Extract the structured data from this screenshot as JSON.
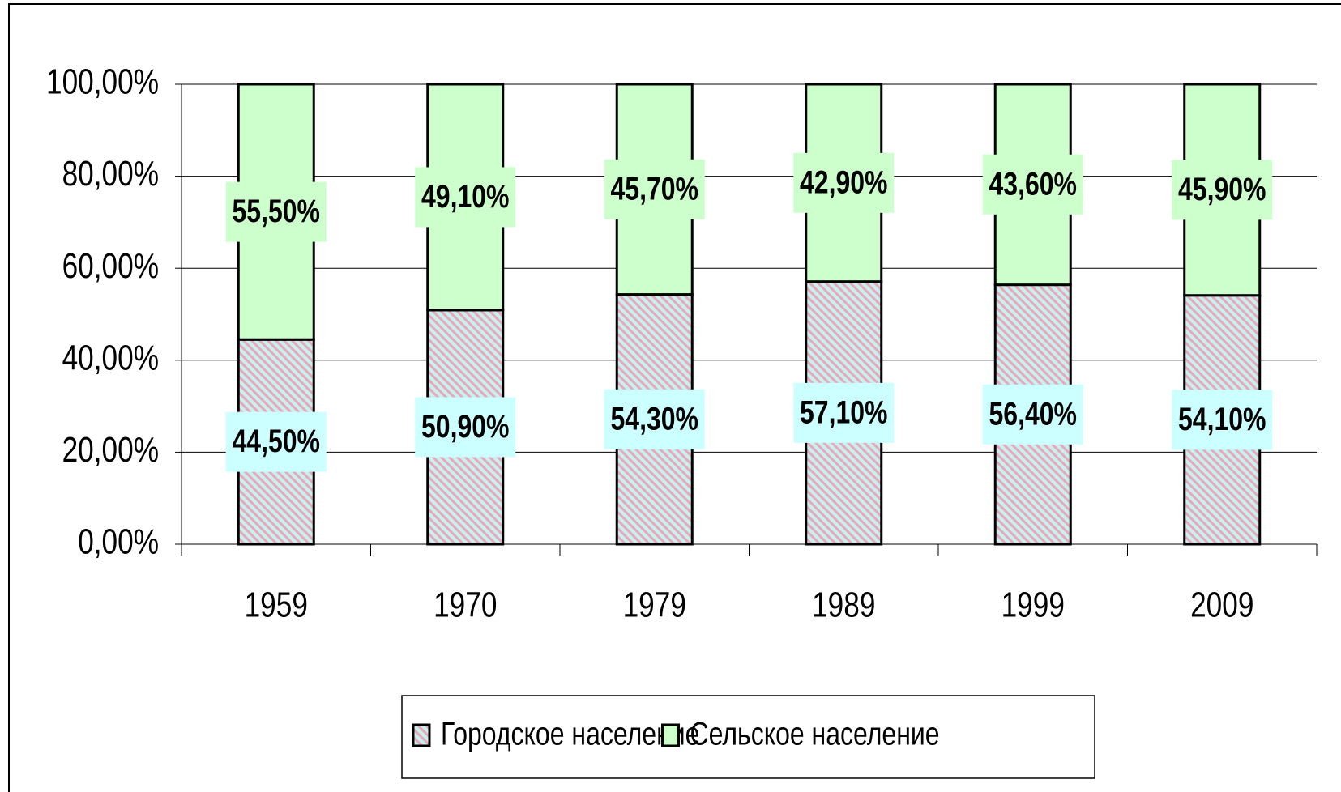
{
  "chart_data": {
    "type": "stacked_bar",
    "categories": [
      "1959",
      "1970",
      "1979",
      "1989",
      "1999",
      "2009"
    ],
    "series": [
      {
        "name": "Городское население",
        "color": "#c8f0f0",
        "hatch": "#e8a8b8",
        "values": [
          44.5,
          50.9,
          54.3,
          57.1,
          56.4,
          54.1
        ],
        "value_labels": [
          "44,50%",
          "50,90%",
          "54,30%",
          "57,10%",
          "56,40%",
          "54,10%"
        ]
      },
      {
        "name": "Сельское население",
        "color": "#ccffcc",
        "values": [
          55.5,
          49.1,
          45.7,
          42.9,
          43.6,
          45.9
        ],
        "value_labels": [
          "55,50%",
          "49,10%",
          "45,70%",
          "42,90%",
          "43,60%",
          "45,90%"
        ]
      }
    ],
    "ylim": [
      0,
      100
    ],
    "yticks": [
      {
        "value": 0,
        "label": "0,00%"
      },
      {
        "value": 20,
        "label": "20,00%"
      },
      {
        "value": 40,
        "label": "40,00%"
      },
      {
        "value": 60,
        "label": "60,00%"
      },
      {
        "value": 80,
        "label": "80,00%"
      },
      {
        "value": 100,
        "label": "100,00%"
      }
    ],
    "grid": true,
    "legend": "bottom"
  }
}
